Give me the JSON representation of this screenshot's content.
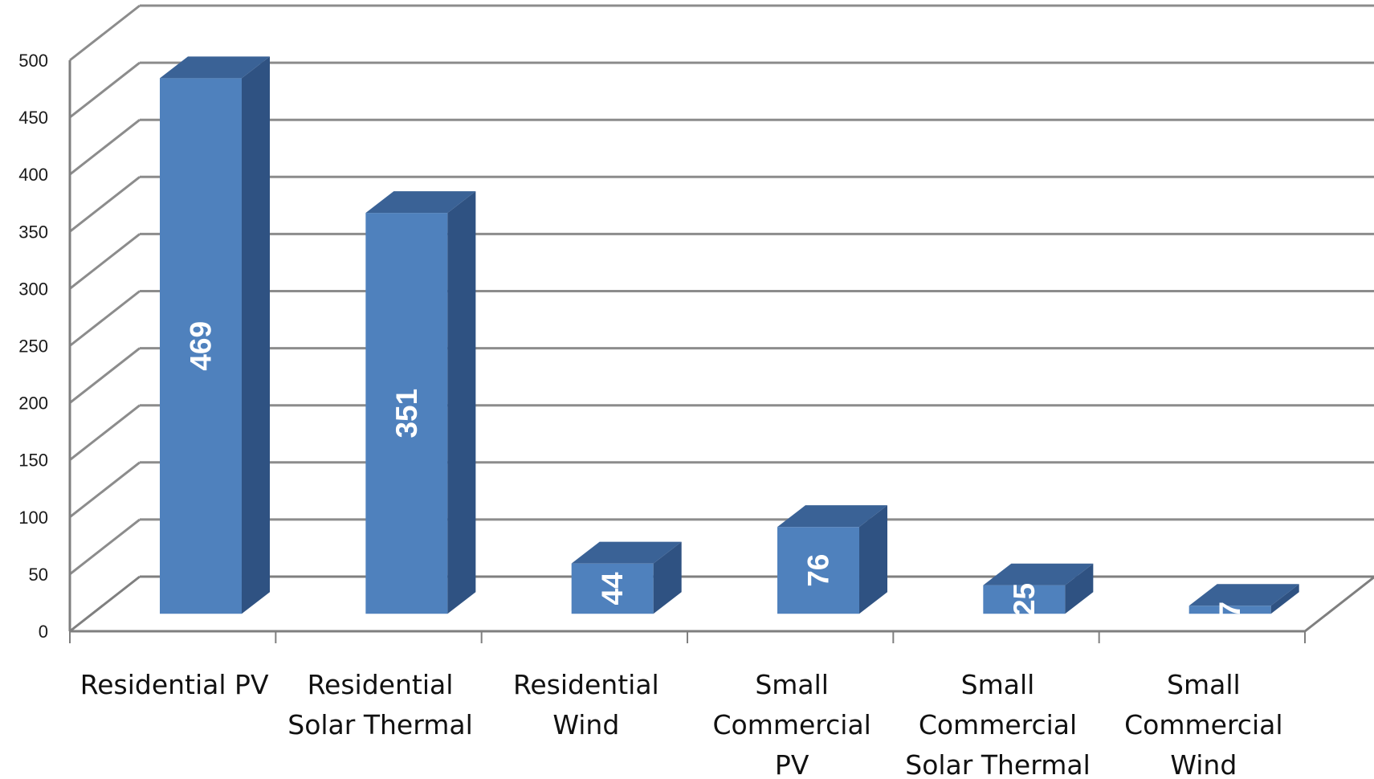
{
  "chart_data": {
    "type": "bar",
    "style": "3d-column",
    "categories": [
      [
        "Residential PV"
      ],
      [
        "Residential",
        "Solar Thermal"
      ],
      [
        "Residential",
        "Wind"
      ],
      [
        "Small",
        "Commercial",
        "PV"
      ],
      [
        "Small",
        "Commercial",
        "Solar Thermal"
      ],
      [
        "Small",
        "Commercial",
        "Wind"
      ]
    ],
    "values": [
      469,
      351,
      44,
      76,
      25,
      7
    ],
    "data_labels": [
      "469",
      "351",
      "44",
      "76",
      "25",
      "7"
    ],
    "yticks": [
      "0",
      "50",
      "100",
      "150",
      "200",
      "250",
      "300",
      "350",
      "400",
      "450",
      "500"
    ],
    "ylim": [
      0,
      500
    ],
    "grid": true,
    "legend": "none",
    "colors": {
      "bar_front": "#4f81bd",
      "bar_side": "#2f5282",
      "bar_top": "#3a6296",
      "grid": "#8c8c8c",
      "axis": "#7f7f7f",
      "background": "#ffffff"
    }
  }
}
